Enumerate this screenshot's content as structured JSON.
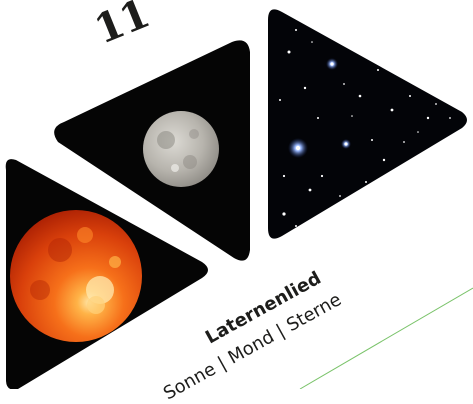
{
  "page_number": "11",
  "title": "Laternenlied",
  "subtitle": "Sonne | Mond | Sterne",
  "images": {
    "sun": "sun-photo",
    "moon": "moon-photo",
    "stars": "starfield-photo"
  },
  "colors": {
    "background": "#ffffff",
    "panel": "#050505",
    "text": "#1d1d1b",
    "accent_line": "#7ac36a",
    "sun_core": "#ffd27a",
    "sun_edge": "#c22a05",
    "moon_light": "#d9d6cf",
    "star_blue": "#6f9cff"
  }
}
